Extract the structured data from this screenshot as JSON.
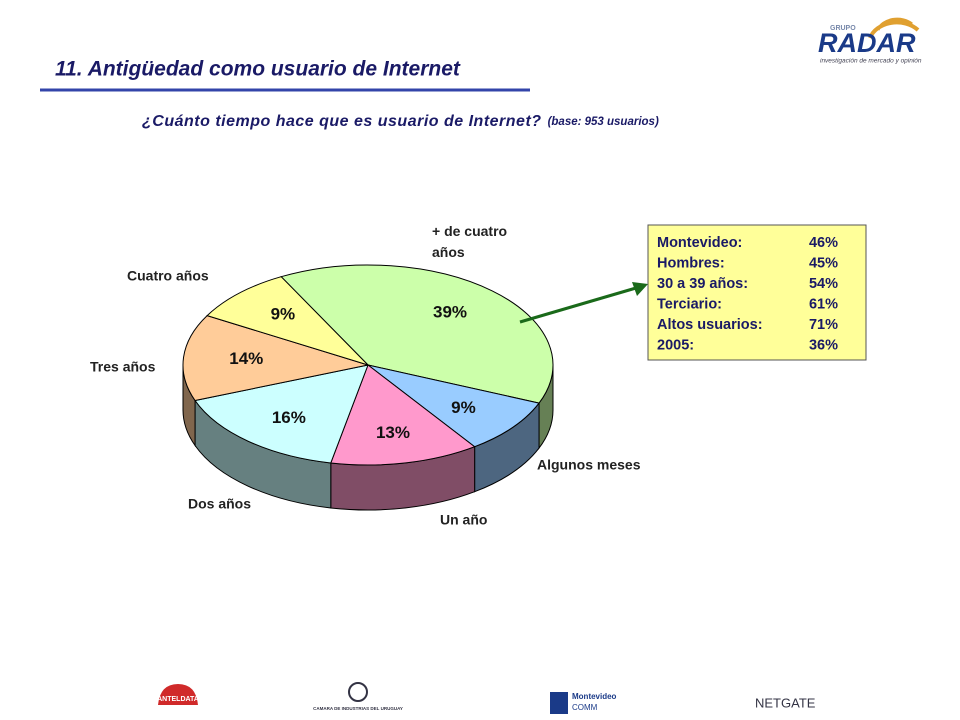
{
  "header": {
    "title": "11. Antigüedad como usuario de Internet",
    "subtitle": "¿Cuánto tiempo hace que es usuario de Internet?",
    "subtitle_note": "(base: 953 usuarios)",
    "logo": {
      "group": "GRUPO",
      "name": "RADAR",
      "tagline": "investigación de mercado y opinión"
    }
  },
  "chart_data": {
    "type": "pie",
    "categories": [
      "+ de cuatro años",
      "Algunos meses",
      "Un año",
      "Dos años",
      "Tres años",
      "Cuatro años"
    ],
    "values": [
      39,
      9,
      13,
      16,
      14,
      9
    ],
    "value_labels": [
      "39%",
      "9%",
      "13%",
      "16%",
      "14%",
      "9%"
    ],
    "colors": [
      "#ccffaa",
      "#99ccff",
      "#ff99cc",
      "#ccffff",
      "#ffcc99",
      "#ffff99"
    ]
  },
  "callout": {
    "rows": [
      {
        "label": "Montevideo:",
        "value": "46%"
      },
      {
        "label": "Hombres:",
        "value": "45%"
      },
      {
        "label": "30 a 39 años:",
        "value": "54%"
      },
      {
        "label": "Terciario:",
        "value": "61%"
      },
      {
        "label": "Altos usuarios:",
        "value": "71%"
      },
      {
        "label": "2005:",
        "value": "36%"
      }
    ]
  },
  "footer": {
    "logos": [
      "ANTELDATA",
      "CAMARA DE INDUSTRIAS DEL URUGUAY",
      "Montevideo",
      "COMM",
      "NETGATE"
    ]
  }
}
